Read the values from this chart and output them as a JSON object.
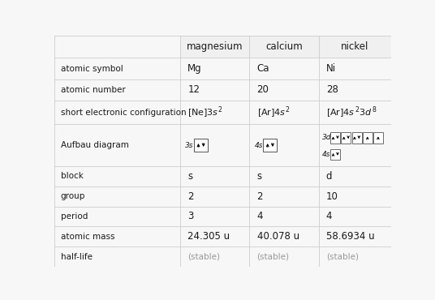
{
  "col_headers": [
    "",
    "magnesium",
    "calcium",
    "nickel"
  ],
  "row_labels": [
    "atomic symbol",
    "atomic number",
    "short electronic configuration",
    "Aufbau diagram",
    "block",
    "group",
    "period",
    "atomic mass",
    "half-life"
  ],
  "mg_values": [
    "Mg",
    "12",
    "ec_mg",
    "aufbau_mg",
    "s",
    "2",
    "3",
    "24.305 u",
    "(stable)"
  ],
  "ca_values": [
    "Ca",
    "20",
    "ec_ca",
    "aufbau_ca",
    "s",
    "2",
    "4",
    "40.078 u",
    "(stable)"
  ],
  "ni_values": [
    "Ni",
    "28",
    "ec_ni",
    "aufbau_ni",
    "d",
    "10",
    "4",
    "58.6934 u",
    "(stable)"
  ],
  "bg_color": "#f7f7f7",
  "line_color": "#cccccc",
  "text_color": "#1a1a1a",
  "gray_color": "#999999",
  "header_color": "#f0f0f0"
}
